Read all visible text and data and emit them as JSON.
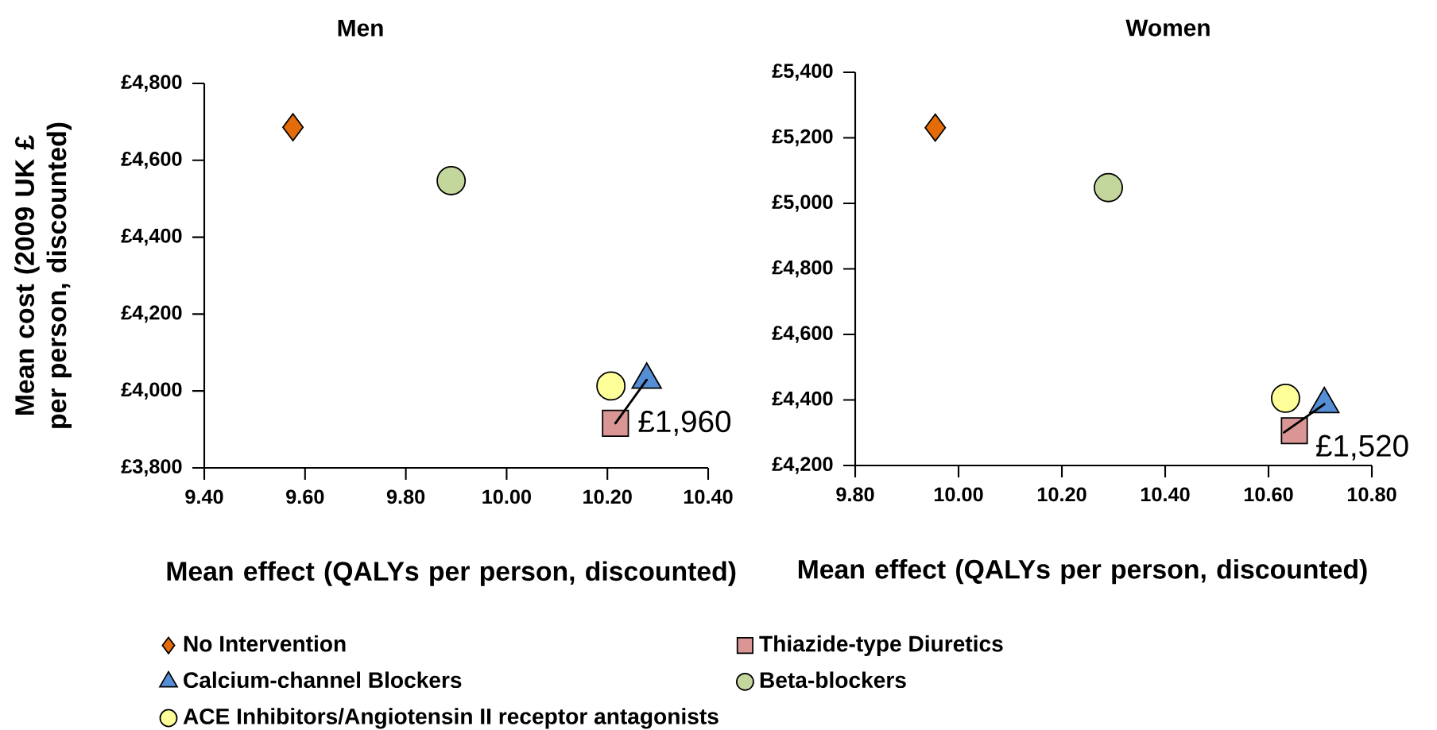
{
  "chart_data": [
    {
      "type": "scatter",
      "title": "Men",
      "xlabel": "Mean effect (QALYs per person, discounted)",
      "ylabel": "Mean cost (2009 UK £ per person, discounted)",
      "xlim": [
        9.4,
        10.4
      ],
      "ylim": [
        3800,
        4800
      ],
      "xticks": [
        {
          "value": 9.4,
          "label": "9.40"
        },
        {
          "value": 9.6,
          "label": "9.60"
        },
        {
          "value": 9.8,
          "label": "9.80"
        },
        {
          "value": 10.0,
          "label": "10.00"
        },
        {
          "value": 10.2,
          "label": "10.20"
        },
        {
          "value": 10.4,
          "label": "10.40"
        }
      ],
      "yticks": [
        {
          "value": 3800,
          "label": "£3,800"
        },
        {
          "value": 4000,
          "label": "£4,000"
        },
        {
          "value": 4200,
          "label": "£4,200"
        },
        {
          "value": 4400,
          "label": "£4,400"
        },
        {
          "value": 4600,
          "label": "£4,600"
        },
        {
          "value": 4800,
          "label": "£4,800"
        }
      ],
      "legend": "bottom",
      "series": [
        {
          "name": "No Intervention",
          "color": "#e36c09",
          "marker": "diamond",
          "x": [
            9.576
          ],
          "values": [
            4686
          ]
        },
        {
          "name": "Thiazide-type Diuretics",
          "color": "#d99694",
          "marker": "square",
          "x": [
            10.216
          ],
          "values": [
            3916
          ]
        },
        {
          "name": "Calcium-channel Blockers",
          "color": "#558ed5",
          "marker": "triangle",
          "x": [
            10.278
          ],
          "values": [
            4029
          ]
        },
        {
          "name": "Beta-blockers",
          "color": "#c3d69b",
          "marker": "circle",
          "x": [
            9.89
          ],
          "values": [
            4547
          ]
        },
        {
          "name": "ACE Inhibitors/Angiotensin II receptor antagonists",
          "color": "#ffff99",
          "marker": "circle",
          "x": [
            10.207
          ],
          "values": [
            4013
          ]
        },
        {
          "type": "line",
          "color": "#000000",
          "x": [
            10.216,
            10.278
          ],
          "values": [
            3916,
            4029
          ]
        }
      ],
      "annotations": [
        {
          "text": "£1,960",
          "x": 10.278,
          "y": 4029
        }
      ]
    },
    {
      "type": "scatter",
      "title": "Women",
      "xlabel": "Mean effect (QALYs per person, discounted)",
      "xlim": [
        9.8,
        10.8
      ],
      "ylim": [
        4200,
        5400
      ],
      "xticks": [
        {
          "value": 9.8,
          "label": "9.80"
        },
        {
          "value": 10.0,
          "label": "10.00"
        },
        {
          "value": 10.2,
          "label": "10.20"
        },
        {
          "value": 10.4,
          "label": "10.40"
        },
        {
          "value": 10.6,
          "label": "10.60"
        },
        {
          "value": 10.8,
          "label": "10.80"
        }
      ],
      "yticks": [
        {
          "value": 4200,
          "label": "£4,200"
        },
        {
          "value": 4400,
          "label": "£4,400"
        },
        {
          "value": 4600,
          "label": "£4,600"
        },
        {
          "value": 4800,
          "label": "£4,800"
        },
        {
          "value": 5000,
          "label": "£5,000"
        },
        {
          "value": 5200,
          "label": "£5,200"
        },
        {
          "value": 5400,
          "label": "£5,400"
        }
      ],
      "series": [
        {
          "color": "#e36c09",
          "marker": "diamond",
          "x": [
            9.955
          ],
          "values": [
            5231
          ]
        },
        {
          "color": "#d99694",
          "marker": "square",
          "x": [
            10.65
          ],
          "values": [
            4306
          ]
        },
        {
          "color": "#558ed5",
          "marker": "triangle",
          "x": [
            10.708
          ],
          "values": [
            4387
          ]
        },
        {
          "color": "#c3d69b",
          "marker": "circle",
          "x": [
            10.29
          ],
          "values": [
            5048
          ]
        },
        {
          "color": "#ffff99",
          "marker": "circle",
          "x": [
            10.633
          ],
          "values": [
            4405
          ]
        },
        {
          "type": "line",
          "color": "#000000",
          "x": [
            10.63,
            10.708
          ],
          "values": [
            4301,
            4387
          ]
        }
      ],
      "annotations": [
        {
          "text": "£1,520",
          "x": 10.708,
          "y": 4387
        }
      ]
    }
  ]
}
